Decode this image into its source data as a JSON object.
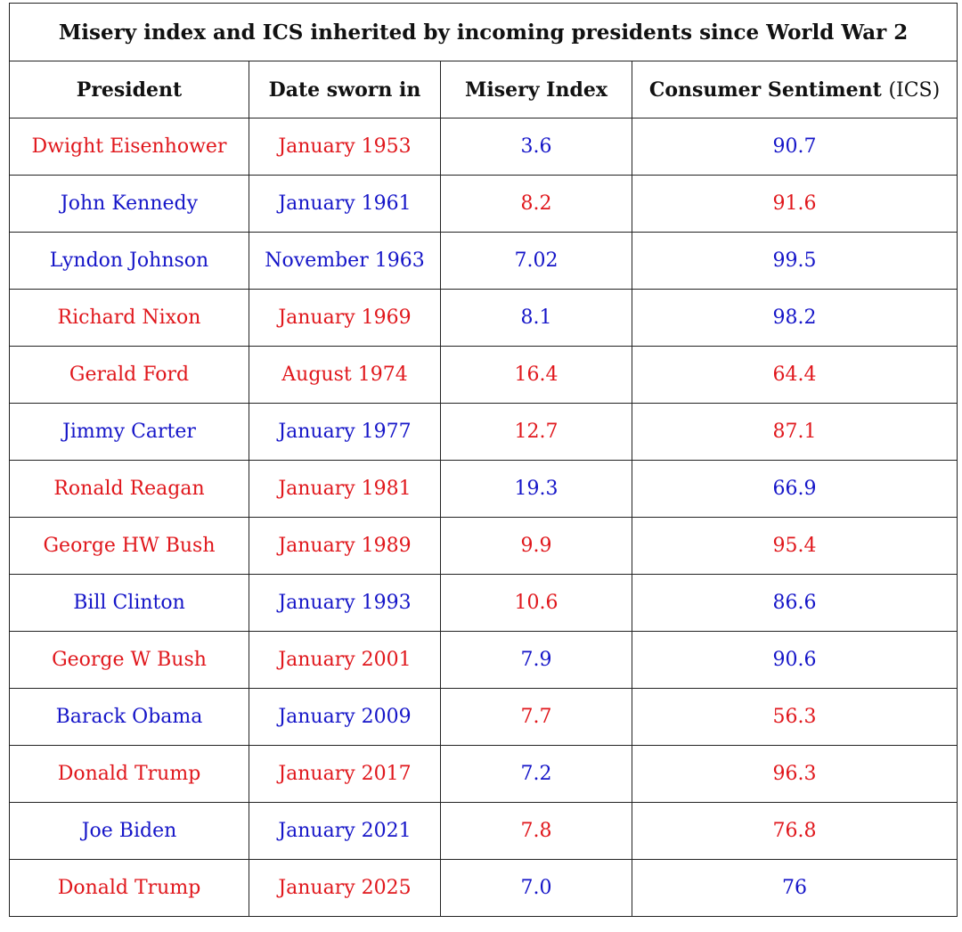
{
  "title": "Misery index and ICS inherited by incoming presidents since World War 2",
  "headers": {
    "president": "President",
    "date": "Date sworn in",
    "misery": "Misery Index",
    "ics_main": "Consumer Sentiment",
    "ics_paren": "(ICS)"
  },
  "colors": {
    "red": "#e0171c",
    "blue": "#1515c8"
  },
  "rows": [
    {
      "president": "Dwight Eisenhower",
      "date": "January 1953",
      "misery": "3.6",
      "ics": "90.7",
      "party_color": "red",
      "misery_color": "blue",
      "ics_color": "blue"
    },
    {
      "president": "John Kennedy",
      "date": "January 1961",
      "misery": "8.2",
      "ics": "91.6",
      "party_color": "blue",
      "misery_color": "red",
      "ics_color": "red"
    },
    {
      "president": "Lyndon Johnson",
      "date": "November 1963",
      "misery": "7.02",
      "ics": "99.5",
      "party_color": "blue",
      "misery_color": "blue",
      "ics_color": "blue"
    },
    {
      "president": "Richard Nixon",
      "date": "January 1969",
      "misery": "8.1",
      "ics": "98.2",
      "party_color": "red",
      "misery_color": "blue",
      "ics_color": "blue"
    },
    {
      "president": "Gerald Ford",
      "date": "August 1974",
      "misery": "16.4",
      "ics": "64.4",
      "party_color": "red",
      "misery_color": "red",
      "ics_color": "red"
    },
    {
      "president": "Jimmy Carter",
      "date": "January 1977",
      "misery": "12.7",
      "ics": "87.1",
      "party_color": "blue",
      "misery_color": "red",
      "ics_color": "red"
    },
    {
      "president": "Ronald Reagan",
      "date": "January 1981",
      "misery": "19.3",
      "ics": "66.9",
      "party_color": "red",
      "misery_color": "blue",
      "ics_color": "blue"
    },
    {
      "president": "George HW Bush",
      "date": "January 1989",
      "misery": "9.9",
      "ics": "95.4",
      "party_color": "red",
      "misery_color": "red",
      "ics_color": "red"
    },
    {
      "president": "Bill Clinton",
      "date": "January 1993",
      "misery": "10.6",
      "ics": "86.6",
      "party_color": "blue",
      "misery_color": "red",
      "ics_color": "blue"
    },
    {
      "president": "George W Bush",
      "date": "January 2001",
      "misery": "7.9",
      "ics": "90.6",
      "party_color": "red",
      "misery_color": "blue",
      "ics_color": "blue"
    },
    {
      "president": "Barack Obama",
      "date": "January 2009",
      "misery": "7.7",
      "ics": "56.3",
      "party_color": "blue",
      "misery_color": "red",
      "ics_color": "red"
    },
    {
      "president": "Donald Trump",
      "date": "January 2017",
      "misery": "7.2",
      "ics": "96.3",
      "party_color": "red",
      "misery_color": "blue",
      "ics_color": "red"
    },
    {
      "president": "Joe Biden",
      "date": "January 2021",
      "misery": "7.8",
      "ics": "76.8",
      "party_color": "blue",
      "misery_color": "red",
      "ics_color": "red"
    },
    {
      "president": "Donald Trump",
      "date": "January 2025",
      "misery": "7.0",
      "ics": "76",
      "party_color": "red",
      "misery_color": "blue",
      "ics_color": "blue"
    }
  ]
}
